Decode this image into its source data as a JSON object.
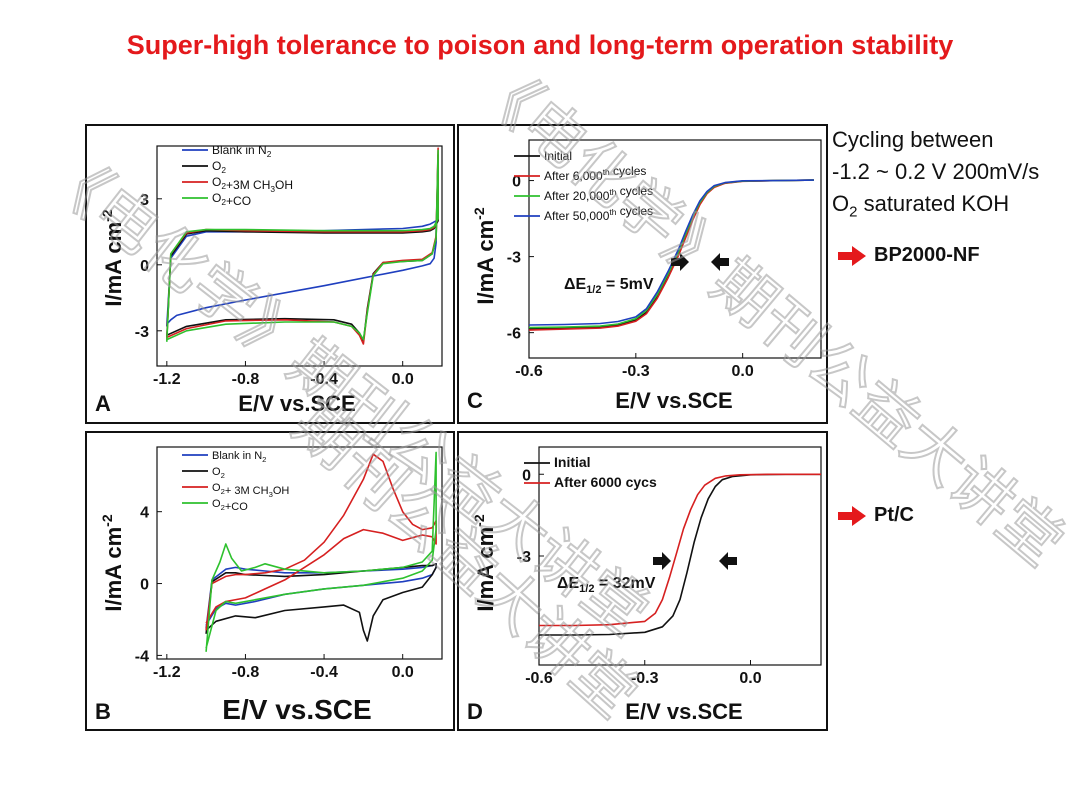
{
  "title": "Super-high tolerance  to poison and long-term operation stability",
  "side": {
    "line1": "Cycling between",
    "line2": "-1.2 ~ 0.2 V 200mV/s",
    "line3_main": "O",
    "line3_sub": "2",
    "line3_rest": " saturated KOH",
    "catalyst1": "BP2000-NF",
    "catalyst2": "Pt/C",
    "arrow_color": "#e4191c"
  },
  "watermark": {
    "text1": "《电化学》期刊公益大讲堂",
    "text2": "《电化学》期刊公益大讲堂",
    "text3": "期刊公益大讲堂"
  },
  "chart_data": [
    {
      "id": "A",
      "type": "line",
      "panel_label": "A",
      "xlabel": "E/V vs.SCE",
      "ylabel": "I/mA cm-2",
      "xlim": [
        -1.25,
        0.2
      ],
      "ylim": [
        -4.6,
        5.4
      ],
      "xticks": [
        -1.2,
        -0.8,
        -0.4,
        0.0
      ],
      "xtick_labels": [
        "-1.2",
        "-0.8",
        "-0.4",
        "0.0"
      ],
      "yticks": [
        -3,
        0,
        3
      ],
      "ytick_labels": [
        "-3",
        "0",
        "3"
      ],
      "legend": [
        "Blank in N2",
        "O2",
        "O2+3M CH3OH",
        "O2+CO"
      ],
      "series": [
        {
          "name": "Blank in N2",
          "color": "#1f3fbf",
          "x": [
            -1.2,
            -1.18,
            -1.1,
            -1.0,
            -0.8,
            -0.4,
            0.0,
            0.1,
            0.12,
            0.14,
            0.16,
            0.17,
            0.17,
            0.16,
            0.14,
            0.1,
            0.0,
            -0.4,
            -0.8,
            -1.0,
            -1.15,
            -1.18,
            -1.2
          ],
          "y": [
            -2.8,
            0.3,
            1.3,
            1.5,
            1.5,
            1.55,
            1.65,
            1.75,
            1.8,
            1.85,
            1.95,
            2.0,
            1.0,
            0.3,
            0.05,
            -0.05,
            -0.25,
            -0.95,
            -1.6,
            -1.95,
            -2.3,
            -2.5,
            -2.7
          ]
        },
        {
          "name": "O2",
          "color": "#111111",
          "x": [
            -1.2,
            -1.18,
            -1.1,
            -1.0,
            -0.8,
            -0.4,
            0.0,
            0.1,
            0.14,
            0.16,
            0.18,
            0.18,
            0.17,
            0.15,
            0.1,
            0.0,
            -0.1,
            -0.15,
            -0.18,
            -0.2,
            -0.22,
            -0.26,
            -0.35,
            -0.6,
            -0.9,
            -1.1,
            -1.2
          ],
          "y": [
            -3.3,
            0.4,
            1.4,
            1.55,
            1.5,
            1.45,
            1.45,
            1.5,
            1.55,
            1.65,
            2.0,
            5.0,
            1.2,
            0.5,
            0.2,
            0.15,
            0.1,
            -0.4,
            -2.0,
            -3.5,
            -3.1,
            -2.7,
            -2.5,
            -2.45,
            -2.5,
            -2.8,
            -3.2
          ]
        },
        {
          "name": "O2+3M CH3OH",
          "color": "#d62020",
          "x": [
            -1.2,
            -1.18,
            -1.1,
            -1.0,
            -0.8,
            -0.4,
            0.0,
            0.1,
            0.14,
            0.16,
            0.18,
            0.18,
            0.17,
            0.15,
            0.1,
            0.0,
            -0.1,
            -0.15,
            -0.18,
            -0.2,
            -0.22,
            -0.26,
            -0.35,
            -0.6,
            -0.9,
            -1.1,
            -1.2
          ],
          "y": [
            -3.4,
            0.5,
            1.45,
            1.6,
            1.55,
            1.5,
            1.5,
            1.55,
            1.6,
            1.7,
            2.1,
            5.3,
            1.3,
            0.55,
            0.25,
            0.2,
            0.1,
            -0.45,
            -2.1,
            -3.6,
            -3.2,
            -2.8,
            -2.6,
            -2.5,
            -2.55,
            -2.9,
            -3.3
          ]
        },
        {
          "name": "O2+CO",
          "color": "#2ec12e",
          "x": [
            -1.2,
            -1.18,
            -1.1,
            -1.0,
            -0.8,
            -0.4,
            0.0,
            0.1,
            0.14,
            0.16,
            0.18,
            0.18,
            0.17,
            0.15,
            0.1,
            0.0,
            -0.1,
            -0.15,
            -0.18,
            -0.2,
            -0.22,
            -0.26,
            -0.35,
            -0.6,
            -0.9,
            -1.1,
            -1.2
          ],
          "y": [
            -3.5,
            0.5,
            1.5,
            1.6,
            1.6,
            1.55,
            1.55,
            1.6,
            1.65,
            1.75,
            2.1,
            5.2,
            1.2,
            0.5,
            0.2,
            0.15,
            0.05,
            -0.5,
            -2.2,
            -3.4,
            -3.1,
            -2.8,
            -2.6,
            -2.6,
            -2.7,
            -3.0,
            -3.4
          ]
        }
      ]
    },
    {
      "id": "B",
      "type": "line",
      "panel_label": "B",
      "xlabel": "E/V vs.SCE",
      "ylabel": "I/mA cm-2",
      "xlim": [
        -1.25,
        0.2
      ],
      "ylim": [
        -4.2,
        7.6
      ],
      "xticks": [
        -1.2,
        -0.8,
        -0.4,
        0.0
      ],
      "xtick_labels": [
        "-1.2",
        "-0.8",
        "-0.4",
        "0.0"
      ],
      "yticks": [
        -4,
        0,
        4
      ],
      "ytick_labels": [
        "-4",
        "0",
        "4"
      ],
      "legend": [
        "Blank in N2",
        "O2",
        "O2+ 3M CH3OH",
        "O2+CO"
      ],
      "series": [
        {
          "name": "Blank in N2",
          "color": "#1f3fbf",
          "x": [
            -1.0,
            -0.97,
            -0.9,
            -0.85,
            -0.8,
            -0.7,
            -0.6,
            -0.4,
            -0.2,
            0.0,
            0.1,
            0.15,
            0.17,
            0.17,
            0.15,
            0.1,
            0.0,
            -0.2,
            -0.4,
            -0.6,
            -0.75,
            -0.85,
            -0.9,
            -0.95,
            -1.0
          ],
          "y": [
            -2.5,
            0.2,
            0.8,
            0.9,
            0.8,
            0.7,
            0.6,
            0.6,
            0.7,
            0.8,
            0.9,
            1.0,
            1.1,
            0.9,
            0.5,
            0.3,
            0.1,
            -0.1,
            -0.3,
            -0.6,
            -1.0,
            -1.2,
            -1.1,
            -1.4,
            -2.3
          ]
        },
        {
          "name": "O2",
          "color": "#111111",
          "x": [
            -1.0,
            -0.97,
            -0.9,
            -0.85,
            -0.8,
            -0.7,
            -0.6,
            -0.4,
            -0.2,
            0.0,
            0.1,
            0.15,
            0.17,
            0.17,
            0.15,
            0.1,
            0.0,
            -0.1,
            -0.15,
            -0.18,
            -0.2,
            -0.22,
            -0.3,
            -0.4,
            -0.6,
            -0.75,
            -0.85,
            -0.95,
            -1.0
          ],
          "y": [
            -2.8,
            0.1,
            0.6,
            0.6,
            0.5,
            0.45,
            0.4,
            0.5,
            0.7,
            0.9,
            1.0,
            1.0,
            1.1,
            0.9,
            0.5,
            -0.2,
            -0.5,
            -0.9,
            -1.8,
            -3.2,
            -2.6,
            -1.6,
            -1.2,
            -1.3,
            -1.5,
            -1.9,
            -1.8,
            -2.1,
            -2.6
          ]
        },
        {
          "name": "O2+ 3M CH3OH",
          "color": "#d62020",
          "x": [
            -1.0,
            -0.97,
            -0.9,
            -0.85,
            -0.8,
            -0.7,
            -0.6,
            -0.5,
            -0.4,
            -0.3,
            -0.2,
            -0.15,
            -0.1,
            -0.05,
            0.0,
            0.05,
            0.1,
            0.15,
            0.17,
            0.17,
            0.15,
            0.1,
            0.0,
            -0.1,
            -0.2,
            -0.3,
            -0.4,
            -0.5,
            -0.6,
            -0.7,
            -0.8,
            -0.9,
            -0.95,
            -1.0
          ],
          "y": [
            -2.6,
            0.0,
            0.4,
            0.5,
            0.5,
            0.6,
            0.8,
            1.3,
            2.3,
            3.8,
            5.8,
            7.2,
            6.8,
            5.3,
            4.0,
            3.3,
            3.0,
            3.1,
            3.5,
            2.2,
            2.6,
            2.7,
            2.4,
            2.8,
            3.0,
            2.5,
            1.6,
            0.9,
            0.2,
            -0.3,
            -0.8,
            -1.0,
            -1.3,
            -2.2
          ]
        },
        {
          "name": "O2+CO",
          "color": "#2ec12e",
          "x": [
            -1.0,
            -0.97,
            -0.93,
            -0.9,
            -0.87,
            -0.82,
            -0.75,
            -0.7,
            -0.6,
            -0.4,
            -0.2,
            -0.1,
            0.0,
            0.1,
            0.15,
            0.17,
            0.17,
            0.15,
            0.1,
            0.0,
            -0.2,
            -0.4,
            -0.6,
            -0.75,
            -0.85,
            -0.9,
            -0.95,
            -1.0
          ],
          "y": [
            -3.8,
            0.2,
            1.2,
            2.2,
            1.4,
            0.7,
            0.9,
            1.1,
            0.8,
            0.6,
            0.7,
            0.8,
            0.9,
            1.2,
            1.8,
            7.3,
            3.0,
            1.3,
            0.7,
            0.3,
            -0.1,
            -0.3,
            -0.6,
            -0.9,
            -1.1,
            -1.0,
            -1.5,
            -3.6
          ]
        }
      ]
    },
    {
      "id": "C",
      "type": "line",
      "panel_label": "C",
      "xlabel": "E/V vs.SCE",
      "ylabel": "I/mA cm-2",
      "xlim": [
        -0.6,
        0.22
      ],
      "ylim": [
        -7.0,
        1.6
      ],
      "xticks": [
        -0.6,
        -0.3,
        0.0
      ],
      "xtick_labels": [
        "-0.6",
        "-0.3",
        "0.0"
      ],
      "yticks": [
        -6,
        -3,
        0
      ],
      "ytick_labels": [
        "-6",
        "-3",
        "0"
      ],
      "legend": [
        "Initial",
        "After 6,000th cycles",
        "After 20,000th cycles",
        "After 50,000th cycles"
      ],
      "annotation": "ΔE1/2 = 5mV",
      "series": [
        {
          "name": "Initial",
          "color": "#111111",
          "x": [
            -0.6,
            -0.5,
            -0.4,
            -0.35,
            -0.3,
            -0.27,
            -0.24,
            -0.21,
            -0.18,
            -0.16,
            -0.14,
            -0.12,
            -0.1,
            -0.08,
            -0.05,
            0.0,
            0.1,
            0.2
          ],
          "y": [
            -5.85,
            -5.82,
            -5.78,
            -5.7,
            -5.5,
            -5.2,
            -4.6,
            -3.8,
            -2.9,
            -2.2,
            -1.5,
            -0.9,
            -0.5,
            -0.25,
            -0.1,
            -0.02,
            0.0,
            0.02
          ]
        },
        {
          "name": "After 6,000th cycles",
          "color": "#d62020",
          "x": [
            -0.6,
            -0.5,
            -0.4,
            -0.35,
            -0.3,
            -0.27,
            -0.24,
            -0.21,
            -0.18,
            -0.16,
            -0.14,
            -0.12,
            -0.1,
            -0.08,
            -0.05,
            0.0,
            0.1,
            0.2
          ],
          "y": [
            -5.9,
            -5.86,
            -5.82,
            -5.74,
            -5.55,
            -5.25,
            -4.65,
            -3.85,
            -2.95,
            -2.25,
            -1.55,
            -0.95,
            -0.52,
            -0.27,
            -0.11,
            -0.03,
            0.0,
            0.02
          ]
        },
        {
          "name": "After 20,000th cycles",
          "color": "#2ec12e",
          "x": [
            -0.6,
            -0.5,
            -0.4,
            -0.35,
            -0.3,
            -0.27,
            -0.24,
            -0.21,
            -0.18,
            -0.16,
            -0.14,
            -0.12,
            -0.1,
            -0.08,
            -0.05,
            0.0,
            0.1,
            0.2
          ],
          "y": [
            -5.8,
            -5.78,
            -5.74,
            -5.66,
            -5.45,
            -5.12,
            -4.5,
            -3.7,
            -2.8,
            -2.1,
            -1.42,
            -0.86,
            -0.47,
            -0.23,
            -0.09,
            -0.02,
            0.0,
            0.02
          ]
        },
        {
          "name": "After 50,000th cycles",
          "color": "#1f3fbf",
          "x": [
            -0.6,
            -0.5,
            -0.4,
            -0.35,
            -0.3,
            -0.27,
            -0.24,
            -0.21,
            -0.18,
            -0.16,
            -0.14,
            -0.12,
            -0.1,
            -0.08,
            -0.05,
            0.0,
            0.1,
            0.2
          ],
          "y": [
            -5.7,
            -5.68,
            -5.64,
            -5.56,
            -5.38,
            -5.05,
            -4.4,
            -3.6,
            -2.7,
            -2.0,
            -1.35,
            -0.8,
            -0.43,
            -0.2,
            -0.08,
            -0.01,
            0.0,
            0.02
          ]
        }
      ]
    },
    {
      "id": "D",
      "type": "line",
      "panel_label": "D",
      "xlabel": "E/V vs.SCE",
      "ylabel": "I/mA cm-2",
      "xlim": [
        -0.6,
        0.2
      ],
      "ylim": [
        -7.0,
        1.0
      ],
      "xticks": [
        -0.6,
        -0.3,
        0.0
      ],
      "xtick_labels": [
        "-0.6",
        "-0.3",
        "0.0"
      ],
      "yticks": [
        -3,
        0
      ],
      "ytick_labels": [
        "-3",
        "0"
      ],
      "legend": [
        "Initial",
        "After 6000 cycs"
      ],
      "annotation": "ΔE1/2 = 32mV",
      "series": [
        {
          "name": "Initial",
          "color": "#111111",
          "x": [
            -0.6,
            -0.5,
            -0.4,
            -0.3,
            -0.25,
            -0.22,
            -0.2,
            -0.18,
            -0.16,
            -0.14,
            -0.12,
            -0.1,
            -0.08,
            -0.05,
            0.0,
            0.1,
            0.2
          ],
          "y": [
            -5.9,
            -5.9,
            -5.88,
            -5.8,
            -5.6,
            -5.2,
            -4.6,
            -3.6,
            -2.5,
            -1.6,
            -0.9,
            -0.45,
            -0.2,
            -0.08,
            -0.02,
            0.0,
            0.0
          ]
        },
        {
          "name": "After 6000 cycs",
          "color": "#d62020",
          "x": [
            -0.6,
            -0.5,
            -0.4,
            -0.3,
            -0.27,
            -0.25,
            -0.23,
            -0.21,
            -0.19,
            -0.17,
            -0.15,
            -0.13,
            -0.1,
            -0.07,
            -0.03,
            0.05,
            0.2
          ],
          "y": [
            -5.55,
            -5.55,
            -5.52,
            -5.4,
            -5.1,
            -4.6,
            -3.8,
            -2.9,
            -2.0,
            -1.3,
            -0.75,
            -0.4,
            -0.15,
            -0.06,
            -0.02,
            0.0,
            0.0
          ]
        }
      ]
    }
  ]
}
